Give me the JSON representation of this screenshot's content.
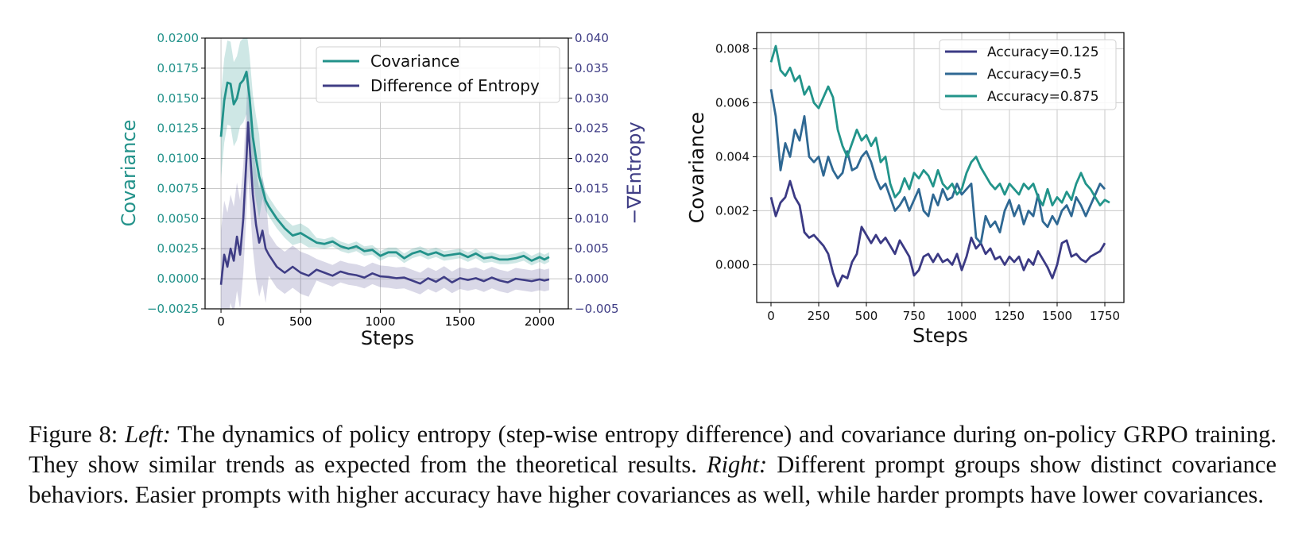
{
  "colors": {
    "covariance": "#22928a",
    "entropy": "#3f3d85",
    "acc_low": "#3b3a84",
    "acc_mid": "#2f6893",
    "acc_high": "#22948a",
    "grid": "#c8c8c8"
  },
  "chart_data": [
    {
      "type": "line",
      "panel": "left",
      "xlabel": "Steps",
      "ylabel_left": "Covariance",
      "ylabel_right": "−∇Entropy",
      "xlim": [
        -100,
        2180
      ],
      "ylim_left": [
        -0.0025,
        0.02
      ],
      "ylim_right": [
        -0.005,
        0.04
      ],
      "x_ticks": [
        "0",
        "500",
        "1000",
        "1500",
        "2000"
      ],
      "y_ticks_left": [
        "−0.0025",
        "0.0000",
        "0.0025",
        "0.0050",
        "0.0075",
        "0.0100",
        "0.0125",
        "0.0150",
        "0.0175",
        "0.0200"
      ],
      "y_ticks_right": [
        "−0.005",
        "0.000",
        "0.005",
        "0.010",
        "0.015",
        "0.020",
        "0.025",
        "0.030",
        "0.035",
        "0.040"
      ],
      "legend_position": "top-right",
      "series": [
        {
          "name": "Covariance",
          "axis": "left",
          "x": [
            0,
            20,
            40,
            60,
            80,
            100,
            120,
            140,
            160,
            180,
            200,
            220,
            240,
            260,
            280,
            300,
            350,
            400,
            450,
            500,
            550,
            600,
            650,
            700,
            750,
            800,
            850,
            900,
            950,
            1000,
            1050,
            1100,
            1150,
            1200,
            1250,
            1300,
            1350,
            1400,
            1450,
            1500,
            1550,
            1600,
            1650,
            1700,
            1750,
            1800,
            1850,
            1900,
            1950,
            2000,
            2030,
            2060
          ],
          "values": [
            0.0118,
            0.0148,
            0.0163,
            0.0162,
            0.0145,
            0.015,
            0.0162,
            0.0165,
            0.0172,
            0.015,
            0.0118,
            0.01,
            0.0085,
            0.0075,
            0.0065,
            0.006,
            0.005,
            0.0042,
            0.0036,
            0.0038,
            0.0034,
            0.003,
            0.0029,
            0.0031,
            0.0027,
            0.0025,
            0.0027,
            0.0023,
            0.0024,
            0.0019,
            0.0022,
            0.0022,
            0.0017,
            0.0021,
            0.0023,
            0.002,
            0.0022,
            0.0019,
            0.002,
            0.0021,
            0.0018,
            0.0021,
            0.0017,
            0.0018,
            0.0016,
            0.0016,
            0.0017,
            0.0019,
            0.0015,
            0.0018,
            0.0016,
            0.0018
          ]
        },
        {
          "name": "Difference of Entropy",
          "axis": "right",
          "x": [
            0,
            20,
            40,
            60,
            80,
            100,
            120,
            140,
            160,
            170,
            180,
            200,
            220,
            240,
            260,
            280,
            300,
            350,
            400,
            450,
            500,
            550,
            600,
            650,
            700,
            750,
            800,
            850,
            900,
            950,
            1000,
            1050,
            1100,
            1150,
            1200,
            1250,
            1300,
            1350,
            1400,
            1450,
            1500,
            1550,
            1600,
            1650,
            1700,
            1750,
            1800,
            1850,
            1900,
            1950,
            2000,
            2030,
            2060
          ],
          "values": [
            -0.001,
            0.004,
            0.002,
            0.005,
            0.003,
            0.007,
            0.004,
            0.01,
            0.02,
            0.026,
            0.022,
            0.014,
            0.009,
            0.006,
            0.008,
            0.005,
            0.004,
            0.002,
            0.001,
            0.002,
            0.001,
            0.0005,
            0.0015,
            0.001,
            0.0005,
            0.0012,
            0.0008,
            0.0006,
            0.0002,
            0.0009,
            0.0004,
            0.0003,
            0.0001,
            0.0002,
            -0.0003,
            -0.0008,
            0.0001,
            -0.0005,
            0.0003,
            -0.0006,
            0.0001,
            -0.0002,
            0.0001,
            -0.0004,
            0.0002,
            -0.0003,
            -0.0006,
            0.0,
            -0.0002,
            -0.0004,
            -0.0001,
            -0.0003,
            -0.0001
          ]
        }
      ]
    },
    {
      "type": "line",
      "panel": "right",
      "xlabel": "Steps",
      "ylabel": "Covariance",
      "xlim": [
        -75,
        1850
      ],
      "ylim": [
        -0.0014,
        0.0086
      ],
      "x_ticks": [
        "0",
        "250",
        "500",
        "750",
        "1000",
        "1250",
        "1500",
        "1750"
      ],
      "y_ticks": [
        "0.000",
        "0.002",
        "0.004",
        "0.006",
        "0.008"
      ],
      "legend_position": "top-right",
      "series": [
        {
          "name": "Accuracy=0.125",
          "x": [
            0,
            25,
            50,
            75,
            100,
            125,
            150,
            175,
            200,
            225,
            250,
            275,
            300,
            325,
            350,
            375,
            400,
            425,
            450,
            475,
            500,
            525,
            550,
            575,
            600,
            625,
            650,
            675,
            700,
            725,
            750,
            775,
            800,
            825,
            850,
            875,
            900,
            925,
            950,
            975,
            1000,
            1025,
            1050,
            1075,
            1100,
            1125,
            1150,
            1175,
            1200,
            1225,
            1250,
            1275,
            1300,
            1325,
            1350,
            1375,
            1400,
            1425,
            1450,
            1475,
            1500,
            1525,
            1550,
            1575,
            1600,
            1625,
            1650,
            1675,
            1700,
            1725,
            1750
          ],
          "values": [
            0.0025,
            0.0018,
            0.0023,
            0.0025,
            0.0031,
            0.0025,
            0.0022,
            0.0012,
            0.001,
            0.0011,
            0.0009,
            0.0007,
            0.0004,
            -0.0003,
            -0.0008,
            -0.0004,
            -0.0005,
            0.0001,
            0.0004,
            0.0014,
            0.0011,
            0.0008,
            0.0011,
            0.0008,
            0.001,
            0.0007,
            0.0004,
            0.0009,
            0.0006,
            0.0003,
            -0.0004,
            -0.0002,
            0.0003,
            0.0004,
            0.0001,
            0.0004,
            0.0001,
            0.0002,
            0.0,
            0.0004,
            -0.0002,
            0.0003,
            0.001,
            0.0006,
            0.0008,
            0.0004,
            0.0006,
            0.0002,
            0.0003,
            0.0,
            0.0003,
            0.0001,
            0.0003,
            -0.0002,
            0.0002,
            0.0,
            0.0005,
            0.0002,
            -0.0001,
            -0.0005,
            0.0,
            0.0008,
            0.0009,
            0.0003,
            0.0004,
            0.0002,
            0.0001,
            0.0003,
            0.0004,
            0.0005,
            0.0008
          ]
        },
        {
          "name": "Accuracy=0.5",
          "x": [
            0,
            25,
            50,
            75,
            100,
            125,
            150,
            175,
            200,
            225,
            250,
            275,
            300,
            325,
            350,
            375,
            400,
            425,
            450,
            475,
            500,
            525,
            550,
            575,
            600,
            625,
            650,
            675,
            700,
            725,
            750,
            775,
            800,
            825,
            850,
            875,
            900,
            925,
            950,
            975,
            1000,
            1025,
            1050,
            1075,
            1100,
            1125,
            1150,
            1175,
            1200,
            1225,
            1250,
            1275,
            1300,
            1325,
            1350,
            1375,
            1400,
            1425,
            1450,
            1475,
            1500,
            1525,
            1550,
            1575,
            1600,
            1625,
            1650,
            1675,
            1700,
            1725,
            1750
          ],
          "values": [
            0.0065,
            0.0055,
            0.0035,
            0.0045,
            0.004,
            0.005,
            0.0046,
            0.0055,
            0.004,
            0.0038,
            0.004,
            0.0033,
            0.004,
            0.0035,
            0.0032,
            0.0034,
            0.0042,
            0.0035,
            0.0036,
            0.004,
            0.0042,
            0.0038,
            0.0032,
            0.0028,
            0.003,
            0.0025,
            0.002,
            0.0022,
            0.0025,
            0.002,
            0.0024,
            0.0028,
            0.002,
            0.0018,
            0.0026,
            0.0022,
            0.0028,
            0.0024,
            0.0025,
            0.003,
            0.0026,
            0.0028,
            0.003,
            0.001,
            0.0008,
            0.0018,
            0.0014,
            0.0016,
            0.0012,
            0.002,
            0.0024,
            0.0018,
            0.0022,
            0.0015,
            0.002,
            0.0018,
            0.0026,
            0.0016,
            0.0014,
            0.0018,
            0.0015,
            0.002,
            0.0022,
            0.0018,
            0.0025,
            0.0022,
            0.0018,
            0.0022,
            0.0026,
            0.003,
            0.0028
          ]
        },
        {
          "name": "Accuracy=0.875",
          "x": [
            0,
            25,
            50,
            75,
            100,
            125,
            150,
            175,
            200,
            225,
            250,
            275,
            300,
            325,
            350,
            375,
            400,
            425,
            450,
            475,
            500,
            525,
            550,
            575,
            600,
            625,
            650,
            675,
            700,
            725,
            750,
            775,
            800,
            825,
            850,
            875,
            900,
            925,
            950,
            975,
            1000,
            1025,
            1050,
            1075,
            1100,
            1125,
            1150,
            1175,
            1200,
            1225,
            1250,
            1275,
            1300,
            1325,
            1350,
            1375,
            1400,
            1425,
            1450,
            1475,
            1500,
            1525,
            1550,
            1575,
            1600,
            1625,
            1650,
            1675,
            1700,
            1725,
            1750,
            1775
          ],
          "values": [
            0.0075,
            0.0081,
            0.0072,
            0.007,
            0.0073,
            0.0068,
            0.007,
            0.0063,
            0.0066,
            0.006,
            0.0058,
            0.0062,
            0.0066,
            0.0062,
            0.005,
            0.0044,
            0.004,
            0.0045,
            0.005,
            0.0046,
            0.0048,
            0.0044,
            0.0047,
            0.0038,
            0.004,
            0.003,
            0.0025,
            0.0027,
            0.0032,
            0.0028,
            0.0034,
            0.0032,
            0.0035,
            0.0033,
            0.0029,
            0.0035,
            0.003,
            0.0028,
            0.003,
            0.0026,
            0.0028,
            0.0034,
            0.0038,
            0.004,
            0.0036,
            0.0033,
            0.003,
            0.0028,
            0.003,
            0.0026,
            0.003,
            0.0028,
            0.0026,
            0.003,
            0.0028,
            0.003,
            0.0025,
            0.0022,
            0.0028,
            0.0022,
            0.0025,
            0.0023,
            0.0027,
            0.0024,
            0.003,
            0.0034,
            0.003,
            0.0028,
            0.0025,
            0.0022,
            0.0024,
            0.0023
          ]
        }
      ]
    }
  ],
  "caption": {
    "figure_label": "Figure 8:",
    "left_label": "Left:",
    "left_text": "The dynamics of policy entropy (step-wise entropy difference) and covariance during on-policy GRPO training. They show similar trends as expected from the theoretical results.",
    "right_label": "Right:",
    "right_text": "Different prompt groups show distinct covariance behaviors. Easier prompts with higher accuracy have higher covariances as well, while harder prompts have lower covariances."
  }
}
